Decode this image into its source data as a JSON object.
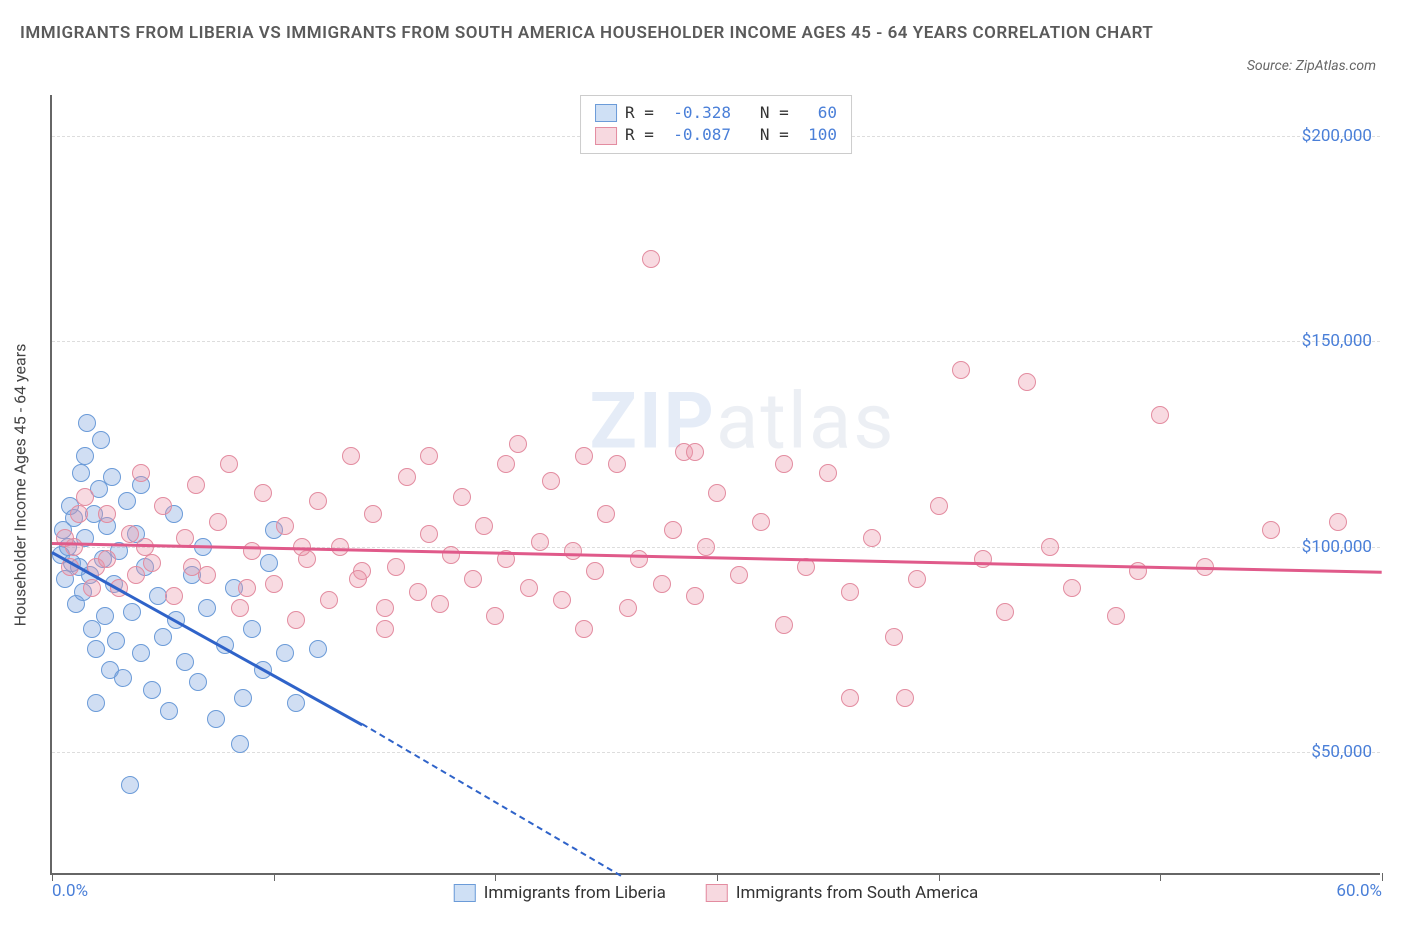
{
  "title": "IMMIGRANTS FROM LIBERIA VS IMMIGRANTS FROM SOUTH AMERICA HOUSEHOLDER INCOME AGES 45 - 64 YEARS CORRELATION CHART",
  "source": "Source: ZipAtlas.com",
  "ylabel": "Householder Income Ages 45 - 64 years",
  "watermark_a": "ZIP",
  "watermark_b": "atlas",
  "chart": {
    "type": "scatter",
    "xlim": [
      0,
      60
    ],
    "ylim": [
      20000,
      210000
    ],
    "xtick_labels": [
      "0.0%",
      "60.0%"
    ],
    "xtick_positions": [
      0,
      60
    ],
    "xtick_marks": [
      0,
      10,
      20,
      30,
      40,
      50,
      60
    ],
    "ytick_labels": [
      "$50,000",
      "$100,000",
      "$150,000",
      "$200,000"
    ],
    "ytick_positions": [
      50000,
      100000,
      150000,
      200000
    ],
    "grid_color": "#dddddd",
    "axis_color": "#666666",
    "background_color": "#ffffff"
  },
  "series": [
    {
      "name": "Immigrants from Liberia",
      "color_fill": "rgba(120,160,220,0.35)",
      "color_stroke": "#6b9bd8",
      "legend_swatch_fill": "#cfe0f5",
      "legend_swatch_border": "#6b9bd8",
      "r_value": "-0.328",
      "n_value": "60",
      "trend_color": "#2f63c9",
      "trend": {
        "x1": 0,
        "y1": 99000,
        "x2": 14,
        "y2": 57000,
        "extrap_x2": 32,
        "extrap_y2": 0
      },
      "points": [
        [
          0.4,
          98000
        ],
        [
          0.5,
          104000
        ],
        [
          0.6,
          92000
        ],
        [
          0.7,
          100000
        ],
        [
          0.8,
          110000
        ],
        [
          0.9,
          96000
        ],
        [
          1.0,
          107000
        ],
        [
          1.1,
          86000
        ],
        [
          1.2,
          95000
        ],
        [
          1.3,
          118000
        ],
        [
          1.4,
          89000
        ],
        [
          1.5,
          102000
        ],
        [
          1.6,
          130000
        ],
        [
          1.7,
          93000
        ],
        [
          1.8,
          80000
        ],
        [
          1.9,
          108000
        ],
        [
          2.0,
          75000
        ],
        [
          2.1,
          114000
        ],
        [
          2.2,
          126000
        ],
        [
          2.3,
          97000
        ],
        [
          2.4,
          83000
        ],
        [
          2.5,
          105000
        ],
        [
          2.6,
          70000
        ],
        [
          2.7,
          117000
        ],
        [
          2.8,
          91000
        ],
        [
          2.9,
          77000
        ],
        [
          3.0,
          99000
        ],
        [
          3.2,
          68000
        ],
        [
          3.4,
          111000
        ],
        [
          3.6,
          84000
        ],
        [
          3.8,
          103000
        ],
        [
          4.0,
          74000
        ],
        [
          4.2,
          95000
        ],
        [
          4.5,
          65000
        ],
        [
          4.8,
          88000
        ],
        [
          5.0,
          78000
        ],
        [
          5.3,
          60000
        ],
        [
          5.6,
          82000
        ],
        [
          6.0,
          72000
        ],
        [
          6.3,
          93000
        ],
        [
          6.6,
          67000
        ],
        [
          7.0,
          85000
        ],
        [
          7.4,
          58000
        ],
        [
          7.8,
          76000
        ],
        [
          8.2,
          90000
        ],
        [
          8.6,
          63000
        ],
        [
          9.0,
          80000
        ],
        [
          9.5,
          70000
        ],
        [
          10.0,
          104000
        ],
        [
          10.5,
          74000
        ],
        [
          11.0,
          62000
        ],
        [
          3.5,
          42000
        ],
        [
          8.5,
          52000
        ],
        [
          2.0,
          62000
        ],
        [
          5.5,
          108000
        ],
        [
          4.0,
          115000
        ],
        [
          1.5,
          122000
        ],
        [
          6.8,
          100000
        ],
        [
          9.8,
          96000
        ],
        [
          12.0,
          75000
        ]
      ]
    },
    {
      "name": "Immigrants from South America",
      "color_fill": "rgba(235,150,170,0.35)",
      "color_stroke": "#e38ca0",
      "legend_swatch_fill": "#f7d9e0",
      "legend_swatch_border": "#e38ca0",
      "r_value": "-0.087",
      "n_value": "100",
      "trend_color": "#e05a8a",
      "trend": {
        "x1": 0,
        "y1": 101000,
        "x2": 60,
        "y2": 94000
      },
      "points": [
        [
          1.0,
          100000
        ],
        [
          1.5,
          112000
        ],
        [
          2.0,
          95000
        ],
        [
          2.5,
          108000
        ],
        [
          3.0,
          90000
        ],
        [
          3.5,
          103000
        ],
        [
          4.0,
          118000
        ],
        [
          4.5,
          96000
        ],
        [
          5.0,
          110000
        ],
        [
          5.5,
          88000
        ],
        [
          6.0,
          102000
        ],
        [
          6.5,
          115000
        ],
        [
          7.0,
          93000
        ],
        [
          7.5,
          106000
        ],
        [
          8.0,
          120000
        ],
        [
          8.5,
          85000
        ],
        [
          9.0,
          99000
        ],
        [
          9.5,
          113000
        ],
        [
          10.0,
          91000
        ],
        [
          10.5,
          105000
        ],
        [
          11.0,
          82000
        ],
        [
          11.5,
          97000
        ],
        [
          12.0,
          111000
        ],
        [
          12.5,
          87000
        ],
        [
          13.0,
          100000
        ],
        [
          13.5,
          122000
        ],
        [
          14.0,
          94000
        ],
        [
          14.5,
          108000
        ],
        [
          15.0,
          80000
        ],
        [
          15.5,
          95000
        ],
        [
          16.0,
          117000
        ],
        [
          16.5,
          89000
        ],
        [
          17.0,
          103000
        ],
        [
          17.5,
          86000
        ],
        [
          18.0,
          98000
        ],
        [
          18.5,
          112000
        ],
        [
          19.0,
          92000
        ],
        [
          19.5,
          105000
        ],
        [
          20.0,
          83000
        ],
        [
          20.5,
          97000
        ],
        [
          21.0,
          125000
        ],
        [
          21.5,
          90000
        ],
        [
          22.0,
          101000
        ],
        [
          22.5,
          116000
        ],
        [
          23.0,
          87000
        ],
        [
          23.5,
          99000
        ],
        [
          24.0,
          80000
        ],
        [
          24.5,
          94000
        ],
        [
          25.0,
          108000
        ],
        [
          25.5,
          120000
        ],
        [
          26.0,
          85000
        ],
        [
          26.5,
          97000
        ],
        [
          27.0,
          170000
        ],
        [
          27.5,
          91000
        ],
        [
          28.0,
          104000
        ],
        [
          28.5,
          123000
        ],
        [
          29.0,
          88000
        ],
        [
          29.5,
          100000
        ],
        [
          30.0,
          113000
        ],
        [
          31.0,
          93000
        ],
        [
          32.0,
          106000
        ],
        [
          33.0,
          81000
        ],
        [
          34.0,
          95000
        ],
        [
          35.0,
          118000
        ],
        [
          36.0,
          89000
        ],
        [
          37.0,
          102000
        ],
        [
          38.0,
          78000
        ],
        [
          39.0,
          92000
        ],
        [
          40.0,
          110000
        ],
        [
          41.0,
          143000
        ],
        [
          42.0,
          97000
        ],
        [
          43.0,
          84000
        ],
        [
          44.0,
          140000
        ],
        [
          45.0,
          100000
        ],
        [
          46.0,
          90000
        ],
        [
          48.0,
          83000
        ],
        [
          50.0,
          132000
        ],
        [
          52.0,
          95000
        ],
        [
          55.0,
          104000
        ],
        [
          58.0,
          106000
        ],
        [
          38.5,
          63000
        ],
        [
          24.0,
          122000
        ],
        [
          20.5,
          120000
        ],
        [
          17.0,
          122000
        ],
        [
          29.0,
          123000
        ],
        [
          33.0,
          120000
        ],
        [
          2.5,
          97000
        ],
        [
          3.8,
          93000
        ],
        [
          1.2,
          108000
        ],
        [
          0.6,
          102000
        ],
        [
          0.8,
          95000
        ],
        [
          1.8,
          90000
        ],
        [
          4.2,
          100000
        ],
        [
          6.3,
          95000
        ],
        [
          8.8,
          90000
        ],
        [
          11.3,
          100000
        ],
        [
          13.8,
          92000
        ],
        [
          49.0,
          94000
        ],
        [
          36.0,
          63000
        ],
        [
          15.0,
          85000
        ]
      ]
    }
  ],
  "legend_header": {
    "r_label": "R =",
    "n_label": "N ="
  }
}
